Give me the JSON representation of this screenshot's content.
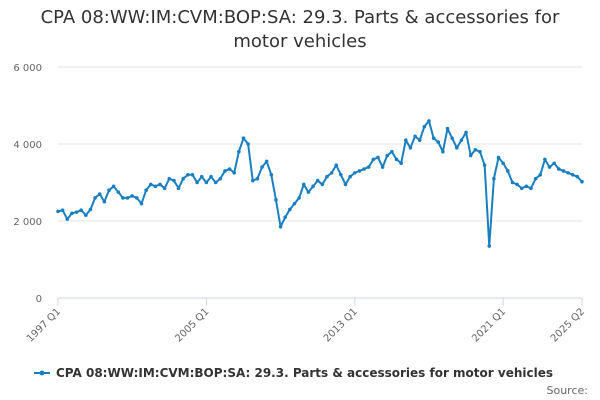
{
  "chart_data": {
    "type": "line",
    "title": "CPA 08:WW:IM:CVM:BOP:SA: 29.3. Parts & accessories for motor vehicles",
    "xlabel": "",
    "ylabel": "",
    "ylim": [
      0,
      6000
    ],
    "y_ticks": [
      "0",
      "2 000",
      "4 000",
      "6 000"
    ],
    "y_tick_values": [
      0,
      2000,
      4000,
      6000
    ],
    "x_ticks": [
      "1997 Q1",
      "2005 Q1",
      "2013 Q1",
      "2021 Q1",
      "2025 Q2"
    ],
    "legend_position": "bottom",
    "grid": "horizontal",
    "colors": {
      "series": "#1a7fc1",
      "grid": "#e6e6e6",
      "axis": "#ccd6eb"
    },
    "source_label": "Source:",
    "x": [
      "1997 Q1",
      "1997 Q2",
      "1997 Q3",
      "1997 Q4",
      "1998 Q1",
      "1998 Q2",
      "1998 Q3",
      "1998 Q4",
      "1999 Q1",
      "1999 Q2",
      "1999 Q3",
      "1999 Q4",
      "2000 Q1",
      "2000 Q2",
      "2000 Q3",
      "2000 Q4",
      "2001 Q1",
      "2001 Q2",
      "2001 Q3",
      "2001 Q4",
      "2002 Q1",
      "2002 Q2",
      "2002 Q3",
      "2002 Q4",
      "2003 Q1",
      "2003 Q2",
      "2003 Q3",
      "2003 Q4",
      "2004 Q1",
      "2004 Q2",
      "2004 Q3",
      "2004 Q4",
      "2005 Q1",
      "2005 Q2",
      "2005 Q3",
      "2005 Q4",
      "2006 Q1",
      "2006 Q2",
      "2006 Q3",
      "2006 Q4",
      "2007 Q1",
      "2007 Q2",
      "2007 Q3",
      "2007 Q4",
      "2008 Q1",
      "2008 Q2",
      "2008 Q3",
      "2008 Q4",
      "2009 Q1",
      "2009 Q2",
      "2009 Q3",
      "2009 Q4",
      "2010 Q1",
      "2010 Q2",
      "2010 Q3",
      "2010 Q4",
      "2011 Q1",
      "2011 Q2",
      "2011 Q3",
      "2011 Q4",
      "2012 Q1",
      "2012 Q2",
      "2012 Q3",
      "2012 Q4",
      "2013 Q1",
      "2013 Q2",
      "2013 Q3",
      "2013 Q4",
      "2014 Q1",
      "2014 Q2",
      "2014 Q3",
      "2014 Q4",
      "2015 Q1",
      "2015 Q2",
      "2015 Q3",
      "2015 Q4",
      "2016 Q1",
      "2016 Q2",
      "2016 Q3",
      "2016 Q4",
      "2017 Q1",
      "2017 Q2",
      "2017 Q3",
      "2017 Q4",
      "2018 Q1",
      "2018 Q2",
      "2018 Q3",
      "2018 Q4",
      "2019 Q1",
      "2019 Q2",
      "2019 Q3",
      "2019 Q4",
      "2020 Q1",
      "2020 Q2",
      "2020 Q3",
      "2020 Q4",
      "2021 Q1",
      "2021 Q2",
      "2021 Q3",
      "2021 Q4",
      "2022 Q1",
      "2022 Q2",
      "2022 Q3",
      "2022 Q4",
      "2023 Q1",
      "2023 Q2",
      "2023 Q3",
      "2023 Q4",
      "2024 Q1",
      "2024 Q2",
      "2024 Q3",
      "2024 Q4",
      "2025 Q1",
      "2025 Q2"
    ],
    "series": [
      {
        "name": "CPA 08:WW:IM:CVM:BOP:SA: 29.3. Parts & accessories for motor vehicles",
        "values": [
          2250,
          2280,
          2050,
          2200,
          2230,
          2280,
          2150,
          2300,
          2600,
          2700,
          2500,
          2800,
          2900,
          2750,
          2600,
          2600,
          2650,
          2600,
          2450,
          2800,
          2950,
          2900,
          2950,
          2850,
          3100,
          3050,
          2850,
          3100,
          3200,
          3200,
          3000,
          3150,
          3000,
          3150,
          3000,
          3100,
          3300,
          3350,
          3250,
          3800,
          4150,
          4000,
          3050,
          3100,
          3400,
          3550,
          3200,
          2550,
          1850,
          2100,
          2300,
          2450,
          2600,
          2950,
          2750,
          2900,
          3050,
          2950,
          3150,
          3250,
          3450,
          3200,
          2950,
          3150,
          3250,
          3300,
          3350,
          3400,
          3600,
          3650,
          3400,
          3700,
          3800,
          3600,
          3500,
          4100,
          3900,
          4200,
          4100,
          4450,
          4600,
          4150,
          4050,
          3800,
          4400,
          4150,
          3900,
          4100,
          4300,
          3700,
          3850,
          3800,
          3450,
          1350,
          3100,
          3650,
          3500,
          3300,
          3000,
          2950,
          2850,
          2900,
          2850,
          3100,
          3200,
          3600,
          3400,
          3500,
          3350,
          3300,
          3250,
          3200,
          3150,
          3020
        ]
      }
    ]
  }
}
